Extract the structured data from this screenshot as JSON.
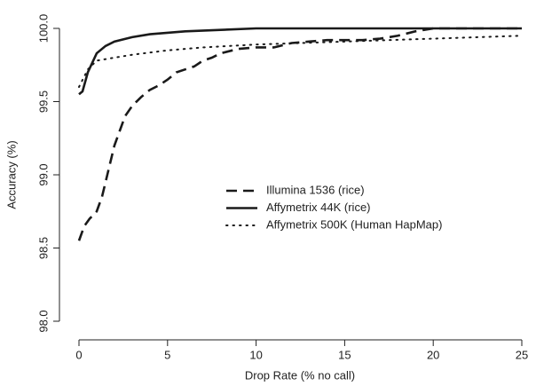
{
  "chart_data": {
    "type": "line",
    "xlabel": "Drop Rate (% no call)",
    "ylabel": "Accuracy (%)",
    "xlim": [
      0,
      25
    ],
    "xticks": [
      0,
      5,
      10,
      15,
      20,
      25
    ],
    "ylim": [
      98,
      100
    ],
    "yticks": [
      {
        "value": 98,
        "label": "98.0"
      },
      98.5,
      {
        "value": 99,
        "label": "99.0"
      },
      99.5,
      {
        "value": 100,
        "label": "100.0"
      }
    ],
    "grid": false,
    "series": [
      {
        "name": "Illumina 1536 (rice)",
        "color": "#1a1a1a",
        "dash": "dashed",
        "x": [
          0,
          0.3,
          0.6,
          1.0,
          1.3,
          1.6,
          2.0,
          2.3,
          2.6,
          3.0,
          3.5,
          4.0,
          4.5,
          5.0,
          5.5,
          6.0,
          6.5,
          7.0,
          7.5,
          8.0,
          9.0,
          10,
          11,
          12,
          13,
          14,
          15,
          16,
          17,
          18,
          19,
          20,
          22,
          25
        ],
        "values": [
          98.55,
          98.65,
          98.7,
          98.75,
          98.85,
          99.0,
          99.2,
          99.3,
          99.4,
          99.47,
          99.53,
          99.58,
          99.61,
          99.65,
          99.7,
          99.72,
          99.74,
          99.78,
          99.8,
          99.83,
          99.86,
          99.87,
          99.87,
          99.9,
          99.91,
          99.92,
          99.92,
          99.92,
          99.93,
          99.95,
          99.98,
          100.0,
          100.0,
          100.0
        ]
      },
      {
        "name": "Affymetrix 44K (rice)",
        "color": "#1a1a1a",
        "dash": "solid",
        "x": [
          0,
          0.2,
          0.5,
          1,
          1.5,
          2,
          3,
          4,
          5,
          6,
          8,
          10,
          15,
          20,
          25
        ],
        "values": [
          99.55,
          99.57,
          99.7,
          99.83,
          99.88,
          99.91,
          99.94,
          99.96,
          99.97,
          99.98,
          99.99,
          100.0,
          100.0,
          100.0,
          100.0
        ]
      },
      {
        "name": "Affymetrix 500K (Human HapMap)",
        "color": "#1a1a1a",
        "dash": "dotted",
        "x": [
          0,
          0.5,
          1,
          2,
          3,
          5,
          7,
          10,
          15,
          20,
          25
        ],
        "values": [
          99.6,
          99.72,
          99.78,
          99.8,
          99.82,
          99.85,
          99.87,
          99.89,
          99.91,
          99.93,
          99.95
        ]
      }
    ],
    "legend": "center"
  }
}
